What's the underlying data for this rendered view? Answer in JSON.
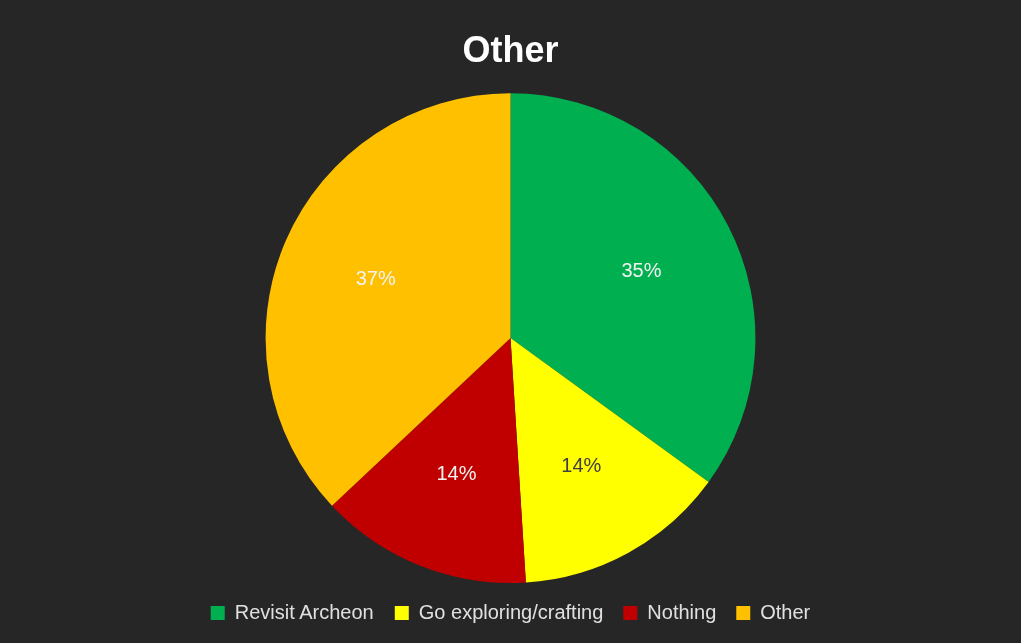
{
  "chart_data": {
    "type": "pie",
    "title": "Other",
    "categories": [
      "Revisit Archeon",
      "Go exploring/crafting",
      "Nothing",
      "Other"
    ],
    "values": [
      35,
      14,
      14,
      37
    ],
    "colors": [
      "#00b050",
      "#ffff00",
      "#c00000",
      "#ffc000"
    ],
    "value_labels": [
      "35%",
      "14%",
      "14%",
      "37%"
    ],
    "legend": "bottom"
  }
}
